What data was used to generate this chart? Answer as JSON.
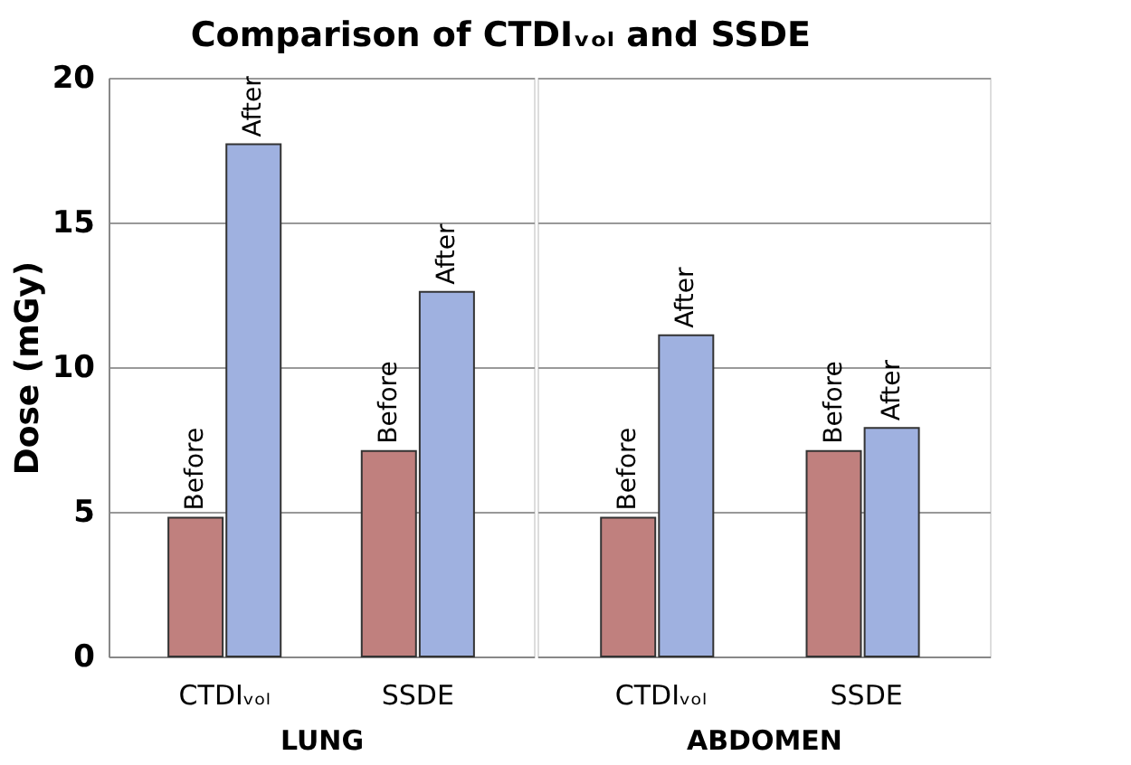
{
  "chart_data": [
    {
      "type": "bar",
      "title": "Comparison of CTDIᵥₒₗ and SSDE",
      "ylabel": "Dose (mGy)",
      "xlabel": "LUNG",
      "categories": [
        "CTDIᵥₒₗ",
        "SSDE"
      ],
      "ylim": [
        0,
        20
      ],
      "yticks": [
        0,
        5,
        10,
        15,
        20
      ],
      "grid": "y",
      "legend": false,
      "series": [
        {
          "name": "Before",
          "color": "#c0807e",
          "values": [
            4.8,
            7.1
          ]
        },
        {
          "name": "After",
          "color": "#9fb1e0",
          "values": [
            17.7,
            12.6
          ]
        }
      ]
    },
    {
      "type": "bar",
      "xlabel": "ABDOMEN",
      "categories": [
        "CTDIᵥₒₗ",
        "SSDE"
      ],
      "ylim": [
        0,
        20
      ],
      "yticks": [
        0,
        5,
        10,
        15,
        20
      ],
      "grid": "y",
      "legend": false,
      "tick_labels": "x",
      "series": [
        {
          "name": "Before",
          "color": "#c0807e",
          "values": [
            4.8,
            7.1
          ]
        },
        {
          "name": "After",
          "color": "#9fb1e0",
          "values": [
            11.1,
            7.9
          ]
        }
      ]
    }
  ]
}
